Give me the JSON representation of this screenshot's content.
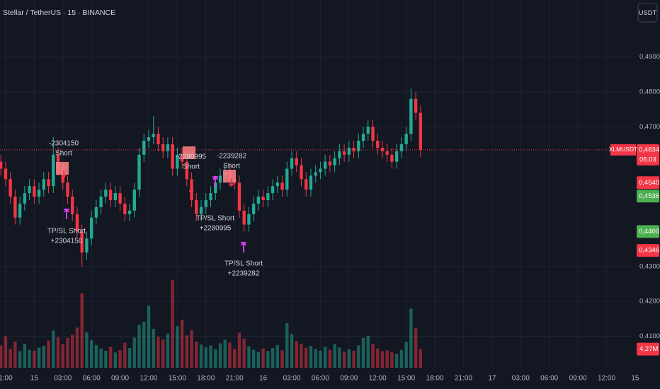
{
  "chart_data": {
    "type": "candlestick",
    "title": "Stellar / TetherUS · 15 · BINANCE",
    "currency_button": "USDT",
    "up_color": "#22ab94",
    "down_color": "#f23645",
    "grid": true,
    "x": [
      0,
      1,
      2,
      3,
      4,
      5,
      6,
      7,
      8,
      9,
      10,
      11,
      12,
      13,
      14,
      15,
      16,
      17,
      18,
      19,
      20,
      21,
      22,
      23,
      24,
      25,
      26,
      27,
      28,
      29,
      30,
      31,
      32,
      33,
      34,
      35,
      36,
      37,
      38,
      39,
      40,
      41,
      42,
      43,
      44,
      45,
      46,
      47,
      48,
      49,
      50,
      51,
      52,
      53,
      54,
      55,
      56,
      57,
      58,
      59,
      60,
      61,
      62,
      63,
      64,
      65,
      66,
      67,
      68,
      69,
      70,
      71,
      72,
      73,
      74,
      75,
      76,
      77,
      78,
      79,
      80,
      81,
      82,
      83,
      84,
      85,
      86,
      87,
      88
    ],
    "open": [
      0.46,
      0.458,
      0.455,
      0.45,
      0.444,
      0.448,
      0.451,
      0.453,
      0.45,
      0.452,
      0.455,
      0.453,
      0.462,
      0.458,
      0.454,
      0.45,
      0.445,
      0.44,
      0.434,
      0.438,
      0.444,
      0.447,
      0.45,
      0.452,
      0.449,
      0.451,
      0.448,
      0.445,
      0.446,
      0.452,
      0.462,
      0.466,
      0.467,
      0.468,
      0.465,
      0.463,
      0.465,
      0.458,
      0.462,
      0.46,
      0.455,
      0.449,
      0.445,
      0.447,
      0.449,
      0.451,
      0.454,
      0.456,
      0.457,
      0.455,
      0.454,
      0.446,
      0.442,
      0.445,
      0.448,
      0.45,
      0.449,
      0.451,
      0.453,
      0.454,
      0.452,
      0.458,
      0.461,
      0.459,
      0.455,
      0.452,
      0.456,
      0.457,
      0.458,
      0.46,
      0.459,
      0.461,
      0.463,
      0.462,
      0.464,
      0.463,
      0.466,
      0.468,
      0.47,
      0.466,
      0.464,
      0.463,
      0.462,
      0.46,
      0.463,
      0.465,
      0.468,
      0.478,
      0.474
    ],
    "close": [
      0.458,
      0.455,
      0.45,
      0.444,
      0.448,
      0.451,
      0.453,
      0.45,
      0.452,
      0.455,
      0.453,
      0.462,
      0.458,
      0.454,
      0.45,
      0.445,
      0.44,
      0.434,
      0.438,
      0.444,
      0.447,
      0.45,
      0.452,
      0.449,
      0.451,
      0.448,
      0.445,
      0.446,
      0.452,
      0.462,
      0.466,
      0.467,
      0.468,
      0.465,
      0.463,
      0.465,
      0.458,
      0.462,
      0.46,
      0.455,
      0.449,
      0.445,
      0.447,
      0.449,
      0.451,
      0.454,
      0.456,
      0.457,
      0.455,
      0.454,
      0.446,
      0.442,
      0.445,
      0.448,
      0.45,
      0.449,
      0.451,
      0.453,
      0.454,
      0.452,
      0.458,
      0.461,
      0.459,
      0.455,
      0.452,
      0.456,
      0.457,
      0.458,
      0.46,
      0.459,
      0.461,
      0.463,
      0.462,
      0.464,
      0.463,
      0.466,
      0.468,
      0.47,
      0.466,
      0.464,
      0.463,
      0.462,
      0.46,
      0.463,
      0.465,
      0.468,
      0.478,
      0.474,
      0.4634
    ],
    "high": [
      0.462,
      0.46,
      0.457,
      0.452,
      0.45,
      0.453,
      0.455,
      0.455,
      0.454,
      0.457,
      0.457,
      0.467,
      0.464,
      0.46,
      0.456,
      0.452,
      0.447,
      0.442,
      0.44,
      0.446,
      0.449,
      0.452,
      0.454,
      0.454,
      0.453,
      0.453,
      0.45,
      0.448,
      0.454,
      0.464,
      0.468,
      0.469,
      0.473,
      0.47,
      0.467,
      0.467,
      0.467,
      0.464,
      0.464,
      0.462,
      0.457,
      0.451,
      0.449,
      0.451,
      0.453,
      0.456,
      0.458,
      0.459,
      0.459,
      0.457,
      0.456,
      0.448,
      0.447,
      0.45,
      0.452,
      0.452,
      0.453,
      0.455,
      0.456,
      0.456,
      0.46,
      0.463,
      0.463,
      0.461,
      0.457,
      0.458,
      0.459,
      0.46,
      0.462,
      0.462,
      0.463,
      0.465,
      0.465,
      0.466,
      0.466,
      0.468,
      0.47,
      0.472,
      0.472,
      0.468,
      0.466,
      0.465,
      0.464,
      0.465,
      0.467,
      0.47,
      0.481,
      0.48,
      0.476
    ],
    "low": [
      0.456,
      0.453,
      0.448,
      0.442,
      0.442,
      0.446,
      0.449,
      0.448,
      0.448,
      0.45,
      0.451,
      0.451,
      0.456,
      0.452,
      0.448,
      0.443,
      0.438,
      0.43,
      0.432,
      0.436,
      0.442,
      0.445,
      0.448,
      0.447,
      0.447,
      0.446,
      0.443,
      0.443,
      0.444,
      0.45,
      0.46,
      0.464,
      0.465,
      0.463,
      0.461,
      0.461,
      0.456,
      0.456,
      0.458,
      0.453,
      0.447,
      0.443,
      0.443,
      0.445,
      0.447,
      0.449,
      0.452,
      0.454,
      0.453,
      0.452,
      0.444,
      0.44,
      0.44,
      0.443,
      0.446,
      0.447,
      0.447,
      0.449,
      0.451,
      0.45,
      0.45,
      0.456,
      0.457,
      0.453,
      0.45,
      0.45,
      0.454,
      0.455,
      0.456,
      0.457,
      0.457,
      0.459,
      0.46,
      0.46,
      0.461,
      0.461,
      0.464,
      0.466,
      0.464,
      0.462,
      0.461,
      0.46,
      0.458,
      0.458,
      0.461,
      0.463,
      0.466,
      0.472,
      0.4614
    ],
    "volume": [
      5.1,
      7.2,
      4.3,
      6.0,
      3.8,
      5.5,
      4.1,
      3.9,
      4.6,
      5.0,
      6.2,
      8.5,
      7.0,
      5.4,
      6.8,
      7.5,
      9.2,
      17.0,
      8.1,
      6.3,
      5.2,
      4.4,
      3.9,
      4.8,
      3.5,
      4.0,
      5.7,
      4.5,
      6.9,
      9.8,
      10.5,
      14.2,
      8.9,
      7.1,
      6.5,
      7.8,
      20.0,
      9.5,
      11.0,
      7.4,
      8.6,
      6.0,
      5.3,
      4.7,
      5.1,
      4.2,
      5.6,
      6.4,
      5.8,
      4.3,
      8.0,
      6.6,
      4.9,
      4.1,
      3.6,
      4.4,
      3.8,
      4.5,
      5.2,
      4.0,
      10.2,
      7.7,
      6.1,
      5.5,
      4.6,
      5.0,
      4.3,
      3.9,
      4.8,
      4.1,
      5.4,
      4.6,
      3.7,
      4.2,
      3.9,
      5.1,
      6.8,
      7.3,
      5.5,
      4.4,
      3.8,
      4.0,
      3.5,
      3.2,
      4.1,
      5.9,
      13.5,
      9.0,
      4.27
    ],
    "volume_lim": [
      0,
      21
    ],
    "last_volume_label": "4,27M",
    "xlim": [
      -0.178,
      134.2
    ],
    "xticks": [
      {
        "value": 1,
        "label": "1:00"
      },
      {
        "value": 7,
        "label": "15"
      },
      {
        "value": 13,
        "label": "03:00"
      },
      {
        "value": 19,
        "label": "06:00"
      },
      {
        "value": 25,
        "label": "09:00"
      },
      {
        "value": 31,
        "label": "12:00"
      },
      {
        "value": 37,
        "label": "15:00"
      },
      {
        "value": 43,
        "label": "18:00"
      },
      {
        "value": 49,
        "label": "21:00"
      },
      {
        "value": 55,
        "label": "16"
      },
      {
        "value": 61,
        "label": "03:00"
      },
      {
        "value": 67,
        "label": "06:00"
      },
      {
        "value": 73,
        "label": "09:00"
      },
      {
        "value": 79,
        "label": "12:00"
      },
      {
        "value": 85,
        "label": "15:00"
      },
      {
        "value": 91,
        "label": "18:00"
      },
      {
        "value": 97,
        "label": "21:00"
      },
      {
        "value": 103,
        "label": "17"
      },
      {
        "value": 109,
        "label": "03:00"
      },
      {
        "value": 115,
        "label": "06:00"
      },
      {
        "value": 121,
        "label": "09:00"
      },
      {
        "value": 127,
        "label": "12:00"
      },
      {
        "value": 133,
        "label": "15"
      }
    ],
    "ylim": [
      0.401,
      0.5063
    ],
    "yticks": [
      {
        "value": 0.41,
        "label": "0,4100"
      },
      {
        "value": 0.42,
        "label": "0,4200"
      },
      {
        "value": 0.43,
        "label": "0,4300"
      },
      {
        "value": 0.47,
        "label": "0,4700"
      },
      {
        "value": 0.48,
        "label": "0,4800"
      },
      {
        "value": 0.49,
        "label": "0,4900"
      }
    ],
    "current": {
      "symbol": "XLMUSDT",
      "value": 0.4634,
      "label": "0,4634",
      "countdown": "05:03",
      "color": "#f23645"
    },
    "price_labels": [
      {
        "value": 0.454,
        "label": "0,4540",
        "color": "#f23645"
      },
      {
        "value": 0.4536,
        "label": "0,4536",
        "color": "#4caf50"
      },
      {
        "value": 0.44,
        "label": "0,4400",
        "color": "#4caf50"
      },
      {
        "value": 0.4346,
        "label": "0,4346",
        "color": "#f23645"
      }
    ],
    "trades": [
      {
        "entry_label": "-2304150",
        "entry_text": "Short",
        "exit_text": "TP/SL Short",
        "exit_label": "+2304150"
      },
      {
        "entry_label": "-2280995",
        "entry_text": "Short",
        "exit_text": "TP/SL Short",
        "exit_label": "+2280995"
      },
      {
        "entry_label": "-2239282",
        "entry_text": "Short",
        "exit_text": "TP/SL Short",
        "exit_label": "+2239282"
      }
    ]
  }
}
